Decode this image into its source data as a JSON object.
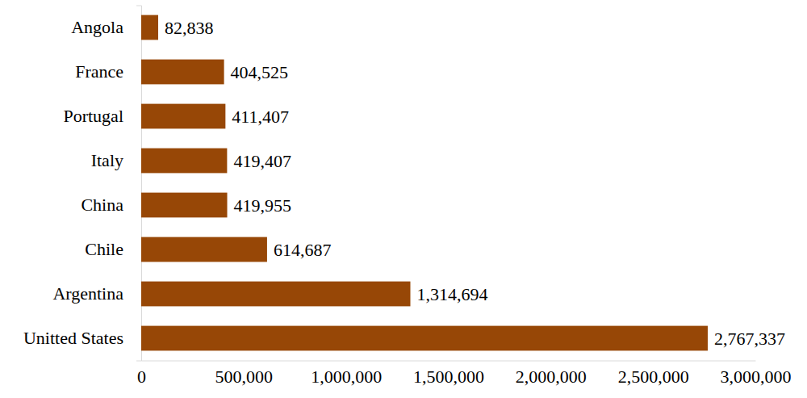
{
  "chart_data": {
    "type": "bar",
    "orientation": "horizontal",
    "categories": [
      "Angola",
      "France",
      "Portugal",
      "Italy",
      "China",
      "Chile",
      "Argentina",
      "Unitted States"
    ],
    "values": [
      82838,
      404525,
      411407,
      419407,
      419955,
      614687,
      1314694,
      2767337
    ],
    "value_labels": [
      "82,838",
      "404,525",
      "411,407",
      "419,407",
      "419,955",
      "614,687",
      "1,314,694",
      "2,767,337"
    ],
    "color": "#974706",
    "xlim": [
      0,
      3000000
    ],
    "xticks": [
      0,
      {
        "value": 500000,
        "label": "500,000"
      },
      {
        "value": 1000000,
        "label": "1,000,000"
      },
      {
        "value": 1500000,
        "label": "1,500,000"
      },
      {
        "value": 2000000,
        "label": "2,000,000"
      },
      {
        "value": 2500000,
        "label": "2,500,000"
      },
      {
        "value": 3000000,
        "label": "3,000,000"
      }
    ],
    "data_labels": true,
    "grid": false
  }
}
